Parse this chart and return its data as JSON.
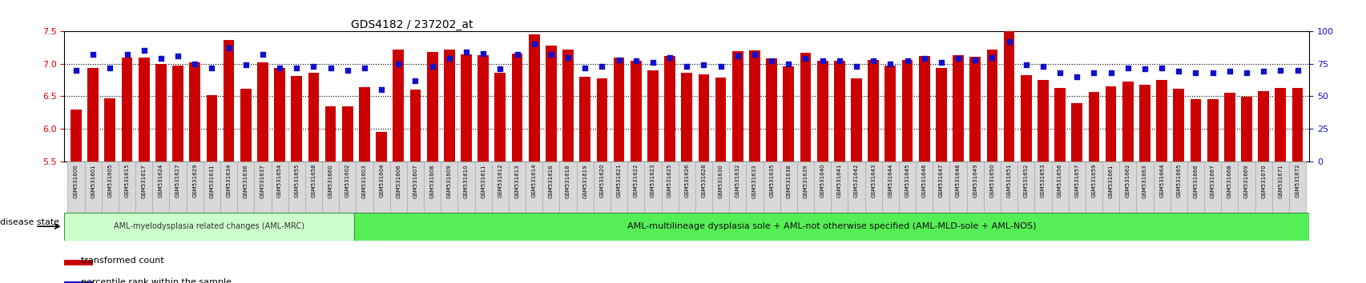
{
  "title": "GDS4182 / 237202_at",
  "ylim_left": [
    5.5,
    7.5
  ],
  "ylim_right": [
    0,
    100
  ],
  "yticks_left": [
    5.5,
    6.0,
    6.5,
    7.0,
    7.5
  ],
  "yticks_right": [
    0,
    25,
    50,
    75,
    100
  ],
  "bar_color": "#cc0000",
  "dot_color": "#1111cc",
  "disease_state_label": "disease state",
  "group1_label": "AML-myelodysplasia related changes (AML-MRC)",
  "group2_label": "AML-multilineage dysplasia sole + AML-not otherwise specified (AML-MLD-sole + AML-NOS)",
  "group1_color": "#ccffcc",
  "group2_color": "#55ee55",
  "legend_bar": "transformed count",
  "legend_dot": "percentile rank within the sample",
  "samples": [
    "GSM531600",
    "GSM531601",
    "GSM531605",
    "GSM531615",
    "GSM531617",
    "GSM531624",
    "GSM531627",
    "GSM531629",
    "GSM531631",
    "GSM531634",
    "GSM531636",
    "GSM531637",
    "GSM531654",
    "GSM531655",
    "GSM531658",
    "GSM531660",
    "GSM531602",
    "GSM531603",
    "GSM531604",
    "GSM531606",
    "GSM531607",
    "GSM531608",
    "GSM531609",
    "GSM531610",
    "GSM531611",
    "GSM531612",
    "GSM531613",
    "GSM531614",
    "GSM531616",
    "GSM531618",
    "GSM531619",
    "GSM531620",
    "GSM531621",
    "GSM531622",
    "GSM531623",
    "GSM531625",
    "GSM531626",
    "GSM531628",
    "GSM531630",
    "GSM531632",
    "GSM531633",
    "GSM531635",
    "GSM531638",
    "GSM531639",
    "GSM531640",
    "GSM531641",
    "GSM531642",
    "GSM531643",
    "GSM531644",
    "GSM531645",
    "GSM531646",
    "GSM531647",
    "GSM531648",
    "GSM531649",
    "GSM531650",
    "GSM531651",
    "GSM531652",
    "GSM531653",
    "GSM531656",
    "GSM531657",
    "GSM531659",
    "GSM531661",
    "GSM531662",
    "GSM531663",
    "GSM531664",
    "GSM531665",
    "GSM531666",
    "GSM531667",
    "GSM531668",
    "GSM531669",
    "GSM531670",
    "GSM531671",
    "GSM531672"
  ],
  "bar_values": [
    6.29,
    6.93,
    6.47,
    7.1,
    7.1,
    7.0,
    6.97,
    7.02,
    6.52,
    7.37,
    6.62,
    7.02,
    6.93,
    6.81,
    6.86,
    6.34,
    6.35,
    6.64,
    5.95,
    7.22,
    6.6,
    7.18,
    7.22,
    7.14,
    7.13,
    6.86,
    7.15,
    7.45,
    7.28,
    7.22,
    6.8,
    6.77,
    7.1,
    7.05,
    6.9,
    7.12,
    6.86,
    6.83,
    6.79,
    7.19,
    7.2,
    7.08,
    6.96,
    7.17,
    7.05,
    7.05,
    6.78,
    7.06,
    6.97,
    7.06,
    7.12,
    6.93,
    7.13,
    7.11,
    7.22,
    7.51,
    6.82,
    6.75,
    6.63,
    6.4,
    6.56,
    6.65,
    6.72,
    6.68,
    6.75,
    6.62,
    6.46,
    6.46,
    6.55,
    6.49,
    6.58,
    6.63,
    6.63
  ],
  "dot_values": [
    70,
    82,
    72,
    82,
    85,
    79,
    81,
    75,
    72,
    87,
    74,
    82,
    72,
    72,
    73,
    72,
    70,
    72,
    55,
    75,
    62,
    73,
    79,
    84,
    83,
    71,
    82,
    90,
    82,
    80,
    72,
    73,
    78,
    77,
    76,
    80,
    73,
    74,
    73,
    81,
    82,
    77,
    75,
    79,
    77,
    77,
    73,
    77,
    75,
    77,
    79,
    76,
    79,
    78,
    80,
    92,
    74,
    73,
    68,
    65,
    68,
    68,
    72,
    71,
    72,
    69,
    68,
    68,
    69,
    68,
    69,
    70,
    70
  ],
  "group1_count": 17,
  "group2_count": 56
}
